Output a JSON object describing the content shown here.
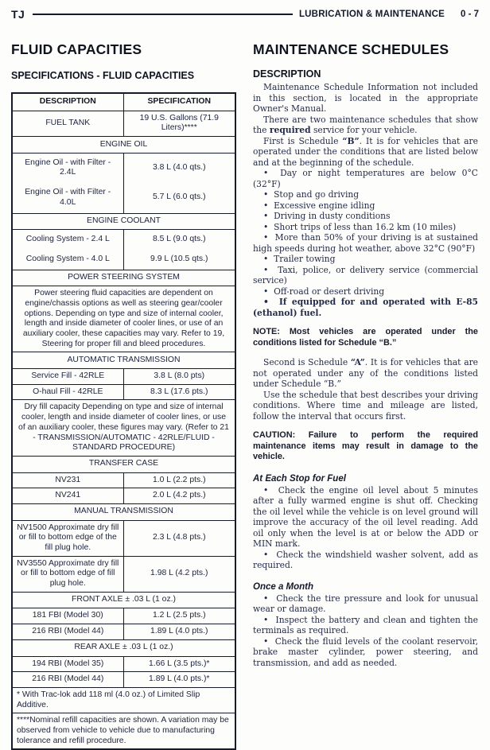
{
  "page_header": {
    "model": "TJ",
    "section_title": "LUBRICATION & MAINTENANCE",
    "page_number": "0 - 7"
  },
  "left_column": {
    "title": "FLUID CAPACITIES",
    "subtitle": "SPECIFICATIONS - FLUID CAPACITIES",
    "table": {
      "headers": [
        "DESCRIPTION",
        "SPECIFICATION"
      ],
      "rows": [
        {
          "type": "data",
          "desc": "FUEL TANK",
          "spec": "19 U.S. Gallons (71.9 Liters)****"
        },
        {
          "type": "section",
          "label": "ENGINE OIL"
        },
        {
          "type": "group",
          "items": [
            {
              "desc": "Engine Oil - with Filter - 2.4L",
              "spec": "3.8 L (4.0 qts.)"
            },
            {
              "desc": "Engine Oil - with Filter - 4.0L",
              "spec": "5.7 L (6.0 qts.)"
            }
          ]
        },
        {
          "type": "section",
          "label": "ENGINE COOLANT"
        },
        {
          "type": "group",
          "items": [
            {
              "desc": "Cooling System - 2.4 L",
              "spec": "8.5 L (9.0 qts.)"
            },
            {
              "desc": "Cooling System - 4.0 L",
              "spec": "9.9 L (10.5 qts.)"
            }
          ]
        },
        {
          "type": "section",
          "label": "POWER STEERING SYSTEM"
        },
        {
          "type": "note",
          "align": "center",
          "text": "Power steering fluid capacities are dependent on engine/chassis options as well as steering gear/cooler options. Depending on type and size of internal cooler, length and inside diameter of cooler lines, or use of an auxiliary cooler, these capacities may vary. Refer to 19, Steering for proper fill and bleed procedures."
        },
        {
          "type": "section",
          "label": "AUTOMATIC TRANSMISSION"
        },
        {
          "type": "data",
          "desc": "Service Fill - 42RLE",
          "spec": "3.8 L (8.0 pts)"
        },
        {
          "type": "data",
          "desc": "O-haul Fill - 42RLE",
          "spec": "8.3 L (17.6 pts.)"
        },
        {
          "type": "note",
          "align": "center",
          "text": "Dry fill capacity Depending on type and size of internal cooler, length and inside diameter of cooler lines, or use of an auxiliary cooler, these figures may vary. (Refer to 21 - TRANSMISSION/AUTOMATIC - 42RLE/FLUID - STANDARD PROCEDURE)"
        },
        {
          "type": "section",
          "label": "TRANSFER CASE"
        },
        {
          "type": "data",
          "desc": "NV231",
          "spec": "1.0 L (2.2 pts.)"
        },
        {
          "type": "data",
          "desc": "NV241",
          "spec": "2.0 L (4.2 pts.)"
        },
        {
          "type": "section",
          "label": "MANUAL TRANSMISSION"
        },
        {
          "type": "data",
          "desc": "NV1500 Approximate dry fill or fill to bottom edge of the fill plug hole.",
          "spec": "2.3 L (4.8 pts.)"
        },
        {
          "type": "data",
          "desc": "NV3550 Approximate dry fill or fill to bottom edge of fill plug hole.",
          "spec": "1.98 L (4.2 pts.)"
        },
        {
          "type": "section",
          "label": "FRONT AXLE ± .03 L (1 oz.)"
        },
        {
          "type": "data",
          "desc": "181 FBI (Model 30)",
          "spec": "1.2 L (2.5 pts.)"
        },
        {
          "type": "data",
          "desc": "216 RBI (Model 44)",
          "spec": "1.89 L (4.0 pts.)"
        },
        {
          "type": "section",
          "label": "REAR AXLE ± .03 L (1 oz.)"
        },
        {
          "type": "data",
          "desc": "194 RBI (Model 35)",
          "spec": "1.66 L (3.5 pts.)*"
        },
        {
          "type": "data",
          "desc": "216 RBI (Model 44)",
          "spec": "1.89 L (4.0 pts.)*"
        },
        {
          "type": "note",
          "align": "left",
          "text": "* With Trac-lok add 118 ml (4.0 oz.) of Limited Slip Additive."
        },
        {
          "type": "note",
          "align": "left",
          "text": "****Nominal refill capacities are shown. A variation may be observed from vehicle to vehicle due to manufacturing tolerance and refill procedure."
        }
      ]
    }
  },
  "right_column": {
    "title": "MAINTENANCE SCHEDULES",
    "bullet_char": "•",
    "blocks": [
      {
        "style": "subhead-sans",
        "text": "DESCRIPTION"
      },
      {
        "style": "para",
        "text": "Maintenance Schedule Information not included in this section, is located in the appropriate Owner's Manual."
      },
      {
        "style": "para",
        "text": "There are two maintenance schedules that show the **required** service for your vehicle."
      },
      {
        "style": "para",
        "text": "First is Schedule **“B”**. It is for vehicles that are operated under the conditions that are listed below and at the beginning of the schedule."
      },
      {
        "style": "bullet",
        "text": "Day or night temperatures are below 0°C (32°F)"
      },
      {
        "style": "bullet",
        "text": "Stop and go driving"
      },
      {
        "style": "bullet",
        "text": "Excessive engine idling"
      },
      {
        "style": "bullet",
        "text": "Driving in dusty conditions"
      },
      {
        "style": "bullet",
        "text": "Short trips of less than 16.2 km (10 miles)"
      },
      {
        "style": "bullet",
        "text": "More than 50% of your driving is at sustained high speeds during hot weather, above 32°C (90°F)"
      },
      {
        "style": "bullet",
        "text": "Trailer towing"
      },
      {
        "style": "bullet",
        "text": "Taxi, police, or delivery service (commercial service)"
      },
      {
        "style": "bullet",
        "text": "Off-road or desert driving"
      },
      {
        "style": "bullet-bold",
        "text": "If equipped for and operated with E-85 (ethanol) fuel."
      },
      {
        "style": "note",
        "text": "NOTE: Most vehicles are operated under the conditions listed for Schedule “B.”"
      },
      {
        "style": "para-gap",
        "text": "Second is Schedule **“A”**. It is for vehicles that are not operated under any of the conditions listed under Schedule “B.”"
      },
      {
        "style": "para",
        "text": "Use the schedule that best describes your driving conditions. Where time and mileage are listed, follow the interval that occurs first."
      },
      {
        "style": "caution",
        "text": "CAUTION: Failure to perform the required maintenance items may result in damage to the vehicle."
      },
      {
        "style": "subhead-italic",
        "text": "At Each Stop for Fuel"
      },
      {
        "style": "bullet",
        "text": "Check the engine oil level about 5 minutes after a fully warmed engine is shut off. Checking the oil level while the vehicle is on level ground will improve the accuracy of the oil level reading. Add oil only when the level is at or below the ADD or MIN mark."
      },
      {
        "style": "bullet",
        "text": "Check the windshield washer solvent, add as required."
      },
      {
        "style": "subhead-italic",
        "text": "Once a Month"
      },
      {
        "style": "bullet",
        "text": "Check the tire pressure and look for unusual wear or damage."
      },
      {
        "style": "bullet",
        "text": "Inspect the battery and clean and tighten the terminals as required."
      },
      {
        "style": "bullet",
        "text": "Check the fluid levels of the coolant reservoir, brake master cylinder, power steering, and transmission, and add as needed."
      }
    ]
  }
}
